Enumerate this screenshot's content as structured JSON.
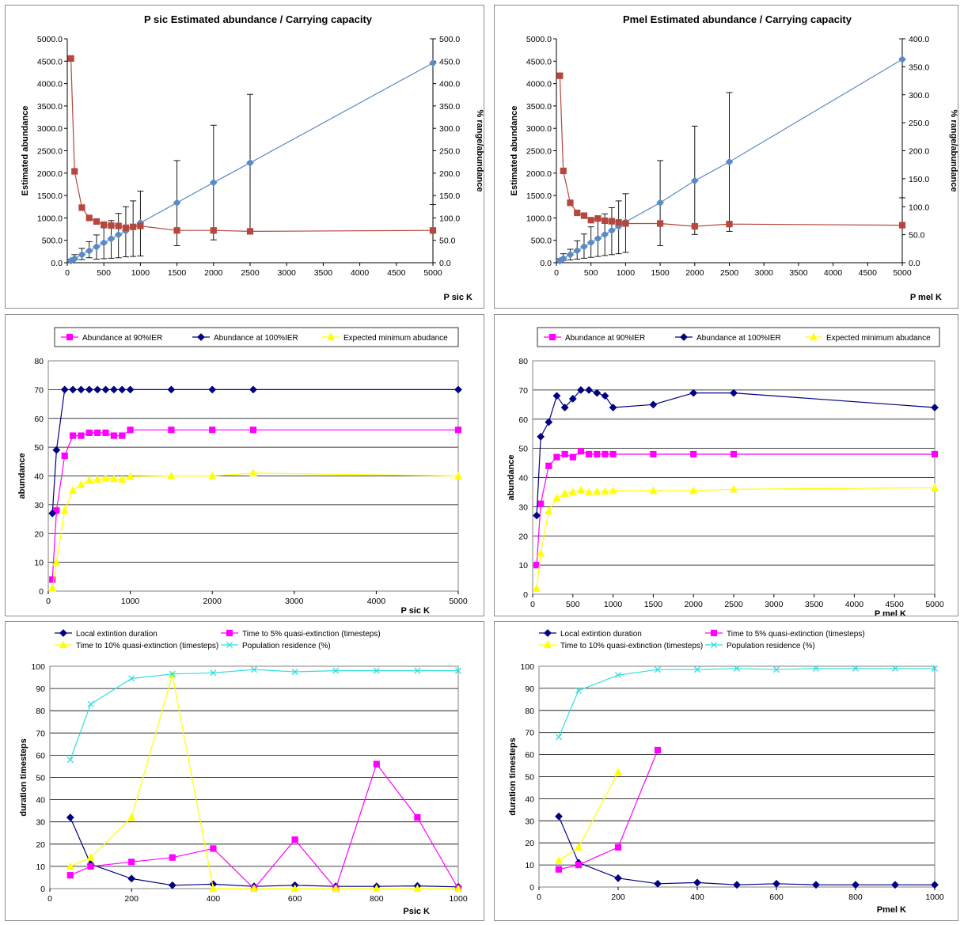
{
  "colors": {
    "red": "#b5473e",
    "blue": "#5b8ac4",
    "magenta": "#ff00ff",
    "navy": "#000080",
    "yellow": "#ffff00",
    "cyan": "#33dddd"
  },
  "chart_data": [
    {
      "id": "p1",
      "type": "line",
      "variant": "abundance",
      "title": "P sic Estimated abundance / Carrying capacity",
      "xlabel": "P sic K",
      "ylabel": "Estimated abundance",
      "y2label": "% range/abundance",
      "categories": [
        "0",
        "500",
        "1000",
        "1500",
        "2000",
        "2500",
        "3000",
        "3500",
        "4000",
        "4500",
        "5000"
      ],
      "xlim": [
        0,
        5000
      ],
      "ylim": [
        0,
        5000
      ],
      "y2lim": [
        0,
        500
      ],
      "yticks": [
        "0.0",
        "500.0",
        "1000.0",
        "1500.0",
        "2000.0",
        "2500.0",
        "3000.0",
        "3500.0",
        "4000.0",
        "4500.0",
        "5000.0"
      ],
      "y2ticks": [
        "0.0",
        "50.0",
        "100.0",
        "150.0",
        "200.0",
        "250.0",
        "300.0",
        "350.0",
        "400.0",
        "450.0",
        "500.0"
      ],
      "x": [
        50,
        100,
        200,
        300,
        400,
        500,
        600,
        700,
        800,
        900,
        1000,
        1500,
        2000,
        2500,
        5000
      ],
      "series": [
        {
          "color": "#5b8ac4",
          "marker": "diamond",
          "axis": "left",
          "values": [
            45,
            90,
            180,
            265,
            355,
            445,
            535,
            625,
            710,
            800,
            890,
            1340,
            1790,
            2230,
            4460
          ],
          "err_low": [
            30,
            60,
            70,
            110,
            80,
            90,
            100,
            110,
            130,
            140,
            150,
            380,
            510,
            680,
            1300
          ],
          "err_high": [
            80,
            180,
            320,
            470,
            620,
            780,
            940,
            1100,
            1250,
            1380,
            1600,
            2280,
            3070,
            3760,
            5000
          ]
        },
        {
          "color": "#b5473e",
          "marker": "square",
          "axis": "right",
          "values": [
            456,
            204,
            123,
            100,
            92,
            85,
            83,
            82,
            78,
            80,
            82,
            72,
            72,
            70,
            72
          ]
        }
      ]
    },
    {
      "id": "p2",
      "type": "line",
      "variant": "abundance",
      "title": "Pmel Estimated abundance / Carrying capacity",
      "xlabel": "P mel K",
      "ylabel": "Estimated abundance",
      "y2label": "% range/abundance",
      "categories": [
        "0",
        "500",
        "1000",
        "1500",
        "2000",
        "2500",
        "3000",
        "3500",
        "4000",
        "4500",
        "5000"
      ],
      "xlim": [
        0,
        5000
      ],
      "ylim": [
        0,
        5000
      ],
      "y2lim": [
        0,
        400
      ],
      "yticks": [
        "0.0",
        "500.0",
        "1000.0",
        "1500.0",
        "2000.0",
        "2500.0",
        "3000.0",
        "3500.0",
        "4000.0",
        "4500.0",
        "5000.0"
      ],
      "y2ticks": [
        "0.0",
        "50.0",
        "100.0",
        "150.0",
        "200.0",
        "250.0",
        "300.0",
        "350.0",
        "400.0"
      ],
      "x": [
        50,
        100,
        200,
        300,
        400,
        500,
        600,
        700,
        800,
        900,
        1000,
        1500,
        2000,
        2500,
        5000
      ],
      "series": [
        {
          "color": "#5b8ac4",
          "marker": "diamond",
          "axis": "left",
          "values": [
            40,
            95,
            180,
            270,
            360,
            450,
            540,
            630,
            720,
            810,
            910,
            1340,
            1830,
            2250,
            4540
          ],
          "err_low": [
            20,
            50,
            60,
            80,
            100,
            120,
            140,
            160,
            180,
            200,
            230,
            380,
            630,
            700,
            1450
          ],
          "err_high": [
            90,
            200,
            300,
            490,
            640,
            800,
            950,
            1090,
            1230,
            1380,
            1540,
            2280,
            3050,
            3800,
            5000
          ]
        },
        {
          "color": "#b5473e",
          "marker": "square",
          "axis": "right",
          "values": [
            334,
            164,
            107,
            89,
            84,
            76,
            79,
            75,
            74,
            72,
            70,
            70,
            65,
            69,
            67
          ]
        }
      ]
    },
    {
      "id": "p3",
      "type": "line",
      "variant": "ier",
      "xlabel": "P sic K",
      "ylabel": "abundance",
      "categories": [
        "0",
        "1000",
        "2000",
        "3000",
        "4000",
        "5000"
      ],
      "xlim": [
        0,
        5000
      ],
      "ylim": [
        0,
        80
      ],
      "yticks": [
        "0",
        "10",
        "20",
        "30",
        "40",
        "50",
        "60",
        "70",
        "80"
      ],
      "x": [
        50,
        100,
        200,
        300,
        400,
        500,
        600,
        700,
        800,
        900,
        1000,
        1500,
        2000,
        2500,
        5000
      ],
      "series": [
        {
          "name": "Abundance at 90%IER",
          "color": "#ff00ff",
          "marker": "square",
          "values": [
            4,
            28,
            47,
            54,
            54,
            55,
            55,
            55,
            54,
            54,
            56,
            56,
            56,
            56,
            56
          ]
        },
        {
          "name": "Abundance at 100%IER",
          "color": "#000080",
          "marker": "diamond",
          "values": [
            27,
            49,
            70,
            70,
            70,
            70,
            70,
            70,
            70,
            70,
            70,
            70,
            70,
            70,
            70
          ]
        },
        {
          "name": "Expected minimum abudance",
          "color": "#ffff00",
          "marker": "triangle",
          "values": [
            1,
            10,
            28,
            35,
            37,
            38.5,
            38.8,
            39.2,
            39,
            38.8,
            39.8,
            40,
            40,
            41,
            40
          ]
        }
      ]
    },
    {
      "id": "p4",
      "type": "line",
      "variant": "ier",
      "xlabel": "P mel K",
      "ylabel": "abundance",
      "categories": [
        "0",
        "500",
        "1000",
        "1500",
        "2000",
        "2500",
        "3000",
        "3500",
        "4000",
        "4500",
        "5000"
      ],
      "xlim": [
        0,
        5000
      ],
      "ylim": [
        0,
        80
      ],
      "yticks": [
        "0",
        "10",
        "20",
        "30",
        "40",
        "50",
        "60",
        "70",
        "80"
      ],
      "x": [
        50,
        100,
        200,
        300,
        400,
        500,
        600,
        700,
        800,
        900,
        1000,
        1500,
        2000,
        2500,
        5000
      ],
      "series": [
        {
          "name": "Abundance at 90%IER",
          "color": "#ff00ff",
          "marker": "square",
          "values": [
            10,
            31,
            44,
            47,
            48,
            47,
            49,
            48,
            48,
            48,
            48,
            48,
            48,
            48,
            48
          ]
        },
        {
          "name": "Abundance at 100%IER",
          "color": "#000080",
          "marker": "diamond",
          "values": [
            27,
            54,
            59,
            68,
            64,
            67,
            70,
            70,
            69,
            68,
            64,
            65,
            69,
            69,
            64
          ]
        },
        {
          "name": "Expected minimum abudance",
          "color": "#ffff00",
          "marker": "triangle",
          "values": [
            2,
            14,
            28.5,
            33,
            34.5,
            35,
            35.7,
            35,
            35.2,
            35.3,
            35.5,
            35.5,
            35.5,
            36,
            36.5
          ]
        }
      ]
    },
    {
      "id": "p5",
      "type": "line",
      "variant": "duration",
      "xlabel": "Psic K",
      "ylabel": "duration timesteps",
      "categories": [
        "0",
        "200",
        "400",
        "600",
        "800",
        "1000"
      ],
      "xlim": [
        0,
        1000
      ],
      "ylim": [
        0,
        100
      ],
      "yticks": [
        "0",
        "10",
        "20",
        "30",
        "40",
        "50",
        "60",
        "70",
        "80",
        "90",
        "100"
      ],
      "series": [
        {
          "name": "Local extintion duration",
          "color": "#000080",
          "marker": "diamond",
          "x": [
            50,
            100,
            200,
            300,
            400,
            500,
            600,
            700,
            800,
            900,
            1000
          ],
          "values": [
            32,
            11,
            4.5,
            1.5,
            2,
            1,
            1.5,
            1,
            1,
            1.2,
            0.8
          ]
        },
        {
          "name": "Time to 5% quasi-extinction (timesteps)",
          "color": "#ff00ff",
          "marker": "square",
          "x": [
            50,
            100,
            200,
            300,
            400,
            500,
            600,
            700,
            800,
            900,
            1000
          ],
          "values": [
            6,
            10,
            12,
            14,
            18,
            0,
            22,
            0,
            56,
            32,
            0
          ]
        },
        {
          "name": "Time to 10% quasi-extinction (timesteps)",
          "color": "#ffff00",
          "marker": "triangle",
          "x": [
            50,
            100,
            200,
            300,
            400,
            500,
            600,
            700,
            800,
            900,
            1000
          ],
          "values": [
            10,
            14,
            32,
            96,
            0,
            0,
            0,
            0,
            0,
            0,
            0
          ]
        },
        {
          "name": "Population residence (%)",
          "color": "#33dddd",
          "marker": "x",
          "x": [
            50,
            100,
            200,
            300,
            400,
            500,
            600,
            700,
            800,
            900,
            1000
          ],
          "values": [
            58,
            83,
            94.5,
            96.5,
            97,
            98.5,
            97.5,
            98,
            98,
            98,
            98
          ]
        }
      ]
    },
    {
      "id": "p6",
      "type": "line",
      "variant": "duration",
      "xlabel": "Pmel K",
      "ylabel": "duration timesteps",
      "categories": [
        "0",
        "200",
        "400",
        "600",
        "800",
        "1000"
      ],
      "xlim": [
        0,
        1000
      ],
      "ylim": [
        0,
        100
      ],
      "yticks": [
        "0",
        "10",
        "20",
        "30",
        "40",
        "50",
        "60",
        "70",
        "80",
        "90",
        "100"
      ],
      "series": [
        {
          "name": "Local extintion duration",
          "color": "#000080",
          "marker": "diamond",
          "x": [
            50,
            100,
            200,
            300,
            400,
            500,
            600,
            700,
            800,
            900,
            1000
          ],
          "values": [
            32,
            11,
            4,
            1.5,
            2,
            1,
            1.5,
            1,
            1,
            1,
            1
          ]
        },
        {
          "name": "Time to 5% quasi-extinction (timesteps)",
          "color": "#ff00ff",
          "marker": "square",
          "x": [
            50,
            100,
            200,
            300
          ],
          "values": [
            8,
            10,
            18,
            62
          ]
        },
        {
          "name": "Time to 10% quasi-extinction (timesteps)",
          "color": "#ffff00",
          "marker": "triangle",
          "x": [
            50,
            100,
            200
          ],
          "values": [
            12,
            18,
            52
          ]
        },
        {
          "name": "Population residence (%)",
          "color": "#33dddd",
          "marker": "x",
          "x": [
            50,
            100,
            200,
            300,
            400,
            500,
            600,
            700,
            800,
            900,
            1000
          ],
          "values": [
            68,
            89,
            96,
            98.5,
            98.5,
            99,
            98.5,
            99,
            99,
            99,
            99
          ]
        }
      ]
    }
  ]
}
